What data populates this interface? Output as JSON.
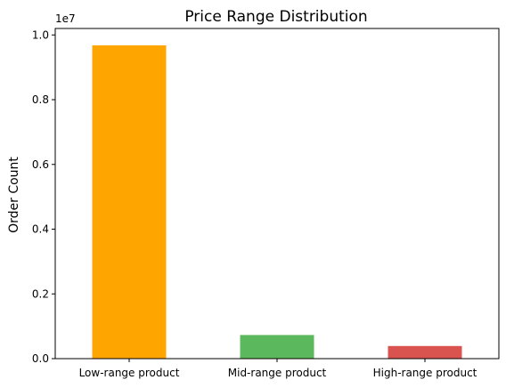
{
  "chart_data": {
    "type": "bar",
    "title": "Price Range Distribution",
    "xlabel": "",
    "ylabel": "Order Count",
    "offset_label": "1e7",
    "categories": [
      "Low-range product",
      "Mid-range product",
      "High-range product"
    ],
    "values": [
      9680000,
      730000,
      390000
    ],
    "colors": [
      "#ffa500",
      "#5cb85c",
      "#d9534f"
    ],
    "ylim": [
      0,
      10200000
    ],
    "yticks": [
      {
        "value": 0,
        "label": "0.0"
      },
      {
        "value": 2000000,
        "label": "0.2"
      },
      {
        "value": 4000000,
        "label": "0.4"
      },
      {
        "value": 6000000,
        "label": "0.6"
      },
      {
        "value": 8000000,
        "label": "0.8"
      },
      {
        "value": 10000000,
        "label": "1.0"
      }
    ],
    "grid": false,
    "legend": "none"
  }
}
